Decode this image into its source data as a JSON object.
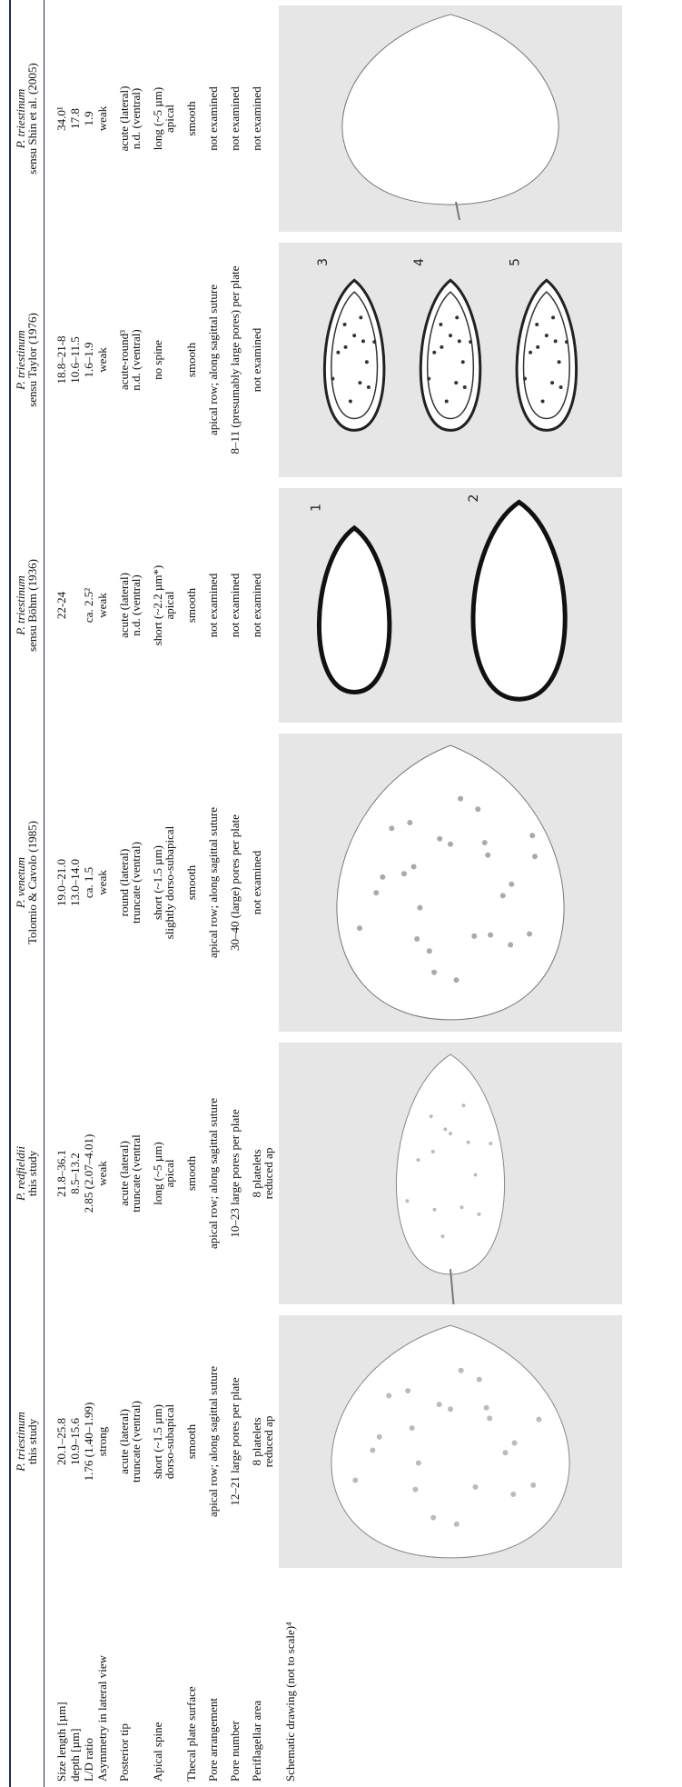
{
  "table": {
    "headers": [
      {
        "species": "P. triestinum",
        "source": "this study"
      },
      {
        "species": "P. redfieldii",
        "source": "this study"
      },
      {
        "species": "P. venetum",
        "source": "Tolomio & Cavolo (1985)"
      },
      {
        "species": "P. triestinum",
        "source": "sensu Böhm (1936)"
      },
      {
        "species": "P. triestinum",
        "source": "sensu Taylor (1976)"
      },
      {
        "species": "P. triestinum",
        "source": "sensu Shin et al. (2005)"
      }
    ],
    "rows": [
      {
        "label": "Size length [µm]",
        "cells": [
          "20.1–25.8",
          "21.8–36.1",
          "19.0–21.0",
          "22-24",
          "18.8–21-8",
          "34.0¹"
        ]
      },
      {
        "label": "depth [µm]",
        "cells": [
          "10.9–15.6",
          "8.5–13.2",
          "13.0–14.0",
          null,
          "10.6–11.5",
          "17.8"
        ]
      },
      {
        "label": "L/D ratio",
        "cells": [
          "1.76 (1.40–1.99)",
          "2.85 (2.07–4.01)",
          "ca. 1.5",
          "ca. 2.5²",
          "1.6–1.9",
          "1.9"
        ]
      },
      {
        "label": "Asymmetry in lateral view",
        "cells": [
          "strong",
          "weak",
          "weak",
          "weak",
          "weak",
          "weak"
        ]
      },
      {
        "label": "Posterior tip",
        "cells": [
          [
            "acute (lateral)",
            "truncate (ventral)"
          ],
          [
            "acute (lateral)",
            "truncate (ventral"
          ],
          [
            "round (lateral)",
            "truncate (ventral)"
          ],
          [
            "acute (lateral)",
            "n.d. (ventral)"
          ],
          [
            "acute-round³",
            "n.d. (ventral)"
          ],
          [
            "acute (lateral)",
            "n.d. (ventral)"
          ]
        ]
      },
      {
        "label": "Apical spine",
        "cells": [
          [
            "short (~1.5 µm)",
            "dorso-subapical"
          ],
          [
            "long (~5 µm)",
            "apical"
          ],
          [
            "short (~1.5 µm)",
            "slightly dorso-subapical"
          ],
          [
            "short (~2.2 µm*)",
            "apical"
          ],
          [
            "no spine"
          ],
          [
            "long (~5 µm)",
            "apical"
          ]
        ]
      },
      {
        "label": "Thecal plate surface",
        "cells": [
          "smooth",
          "smooth",
          "smooth",
          "smooth",
          "smooth",
          "smooth"
        ]
      },
      {
        "label": "Pore arrangement",
        "cells": [
          "apical row; along sagittal suture",
          "apical row; along sagittal suture",
          "apical row; along sagittal suture",
          "not examined",
          "apical row; along sagittal suture",
          "not examined"
        ]
      },
      {
        "label": "Pore number",
        "cells": [
          "12–21 large pores per plate",
          "10–23 large pores per plate",
          "30–40 (large) pores per plate",
          "not examined",
          "8–11 (presumably large pores) per plate",
          "not examined"
        ]
      },
      {
        "label": "Periflagellar area",
        "cells": [
          [
            "8 platelets",
            "reduced ap"
          ],
          [
            "8 platelets",
            "reduced ap"
          ],
          "not examined",
          "not examined",
          "not examined",
          "not examined"
        ]
      }
    ],
    "drawing": {
      "label": "Schematic drawing (not to scale)⁴",
      "numbers": [
        [],
        [],
        [],
        [
          "1",
          "2"
        ],
        [
          "3",
          "4",
          "5"
        ],
        []
      ]
    }
  }
}
